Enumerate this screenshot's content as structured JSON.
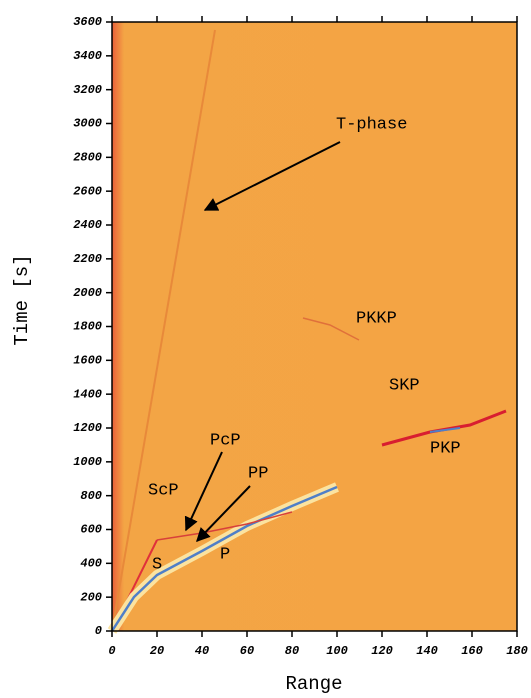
{
  "chart_data": {
    "type": "image",
    "xlabel": "Range",
    "ylabel": "Time [s]",
    "xlim": [
      0,
      180
    ],
    "ylim": [
      0,
      3600
    ],
    "xticks": [
      0,
      20,
      40,
      60,
      80,
      100,
      120,
      140,
      160,
      180
    ],
    "yticks": [
      0,
      200,
      400,
      600,
      800,
      1000,
      1200,
      1400,
      1600,
      1800,
      2000,
      2200,
      2400,
      2600,
      2800,
      3000,
      3200,
      3400,
      3600
    ],
    "annotations": [
      "T-phase",
      "PKKP",
      "SKP",
      "PKP",
      "PcP",
      "PP",
      "ScP",
      "S",
      "P"
    ]
  }
}
